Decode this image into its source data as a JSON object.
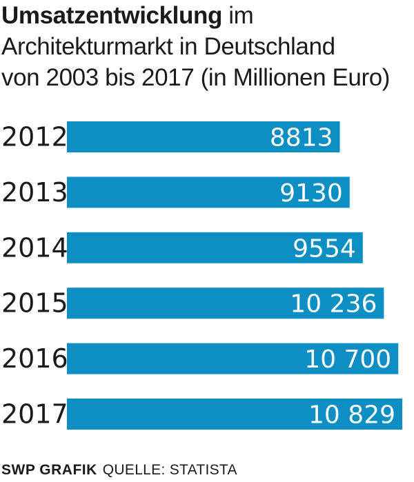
{
  "title": {
    "bold": "Umsatzentwicklung",
    "rest": " im",
    "line2": "Architekturmarkt in Deutschland",
    "line3": "von 2003 bis 2017 (in Millionen Euro)"
  },
  "footer": {
    "brand": "SWP GRAFIK",
    "source": "QUELLE: STATISTA"
  },
  "colors": {
    "bar": "#0e8fc3"
  },
  "chart_data": {
    "type": "bar",
    "orientation": "horizontal",
    "categories": [
      "2012",
      "2013",
      "2014",
      "2015",
      "2016",
      "2017"
    ],
    "values": [
      8813,
      9130,
      9554,
      10236,
      10700,
      10829
    ],
    "value_labels": [
      "8813",
      "9130",
      "9554",
      "10 236",
      "10 700",
      "10 829"
    ],
    "title": "Umsatzentwicklung im Architekturmarkt in Deutschland von 2003 bis 2017 (in Millionen Euro)",
    "xlabel": "",
    "ylabel": "",
    "xlim": [
      0,
      10829
    ],
    "grid": false,
    "legend": "none"
  }
}
